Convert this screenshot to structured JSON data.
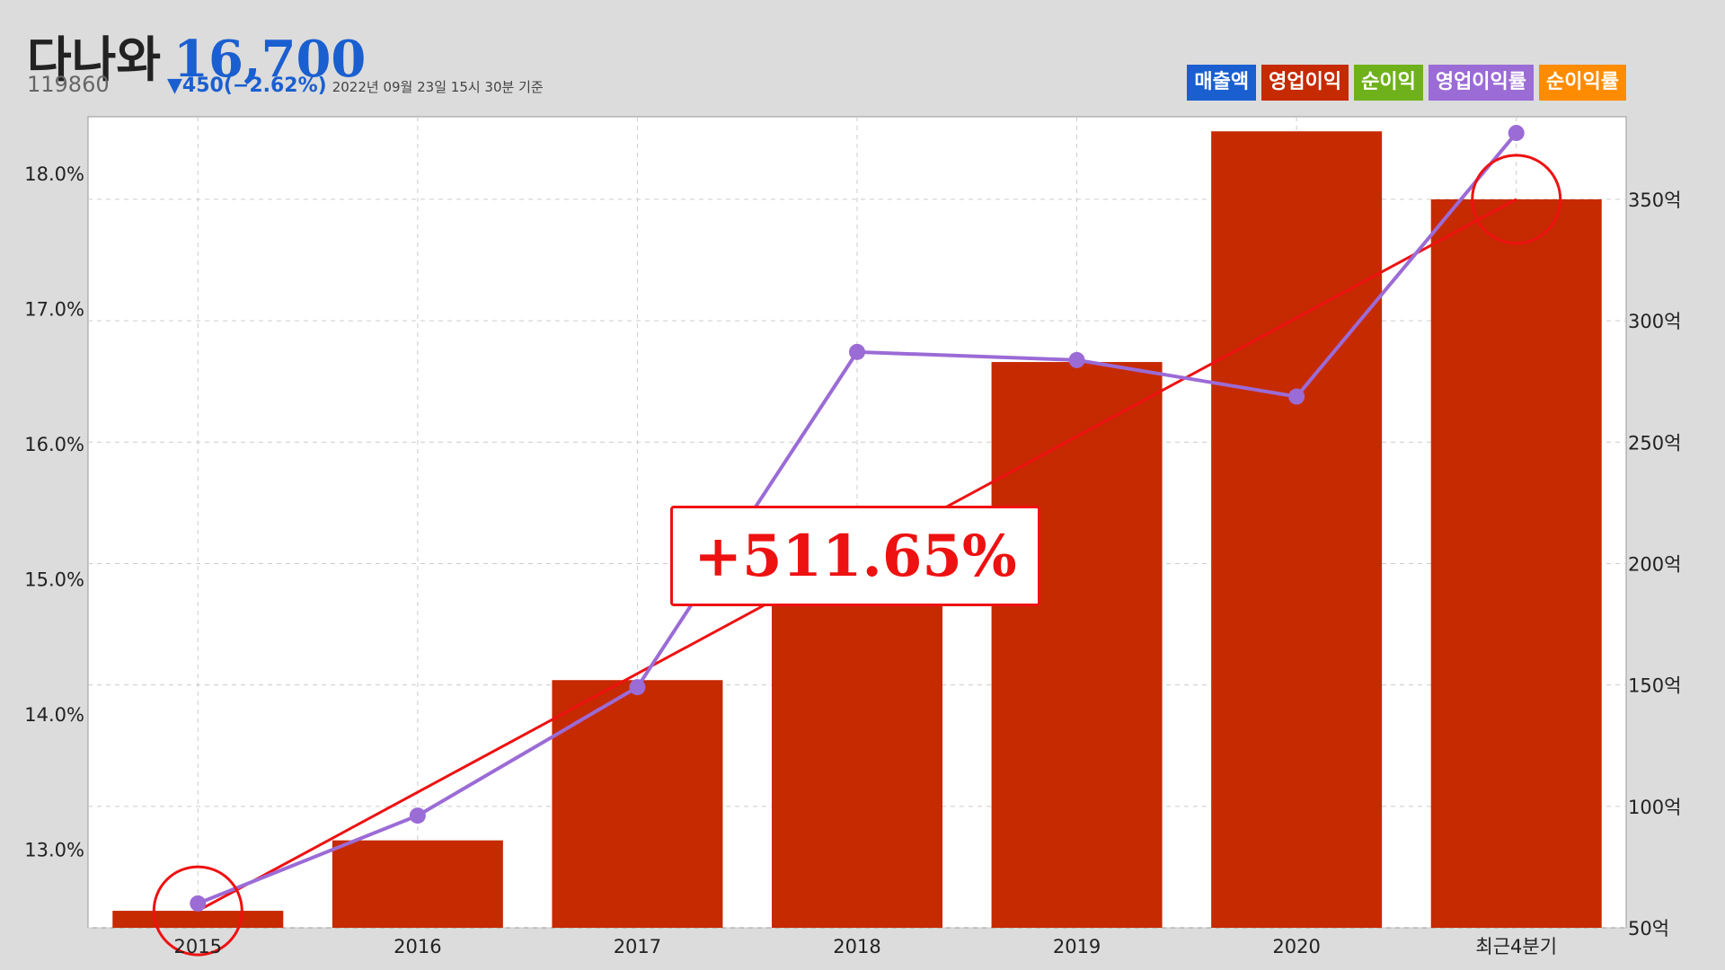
{
  "stock": {
    "name": "다나와",
    "price": "16,700",
    "code": "119860",
    "change": "▼450(−2.62%)",
    "as_of": "2022년 09월 23일 15시 30분 기준"
  },
  "legend": [
    {
      "label": "매출액",
      "color": "#1a5fd0"
    },
    {
      "label": "영업이익",
      "color": "#c62a00"
    },
    {
      "label": "순이익",
      "color": "#6fb11a"
    },
    {
      "label": "영업이익률",
      "color": "#9b6bd6"
    },
    {
      "label": "순이익률",
      "color": "#ff8c00"
    }
  ],
  "annotation": "+511.65%",
  "chart_data": {
    "type": "bar",
    "categories": [
      "2015",
      "2016",
      "2017",
      "2018",
      "2019",
      "2020",
      "최근4분기"
    ],
    "series": [
      {
        "name": "영업이익",
        "type": "bar",
        "axis": "right",
        "color": "#c62a00",
        "values": [
          57,
          86,
          152,
          186,
          283,
          378,
          350
        ]
      },
      {
        "name": "영업이익률",
        "type": "line",
        "axis": "left",
        "color": "#9b6bd6",
        "values": [
          12.6,
          13.25,
          14.2,
          16.68,
          16.62,
          16.35,
          18.3
        ]
      }
    ],
    "trend_line": {
      "from": [
        "2015",
        57
      ],
      "to": [
        "최근4분기",
        350
      ],
      "color": "#ee1111"
    },
    "highlight_circles": [
      [
        "2015",
        57
      ],
      [
        "최근4분기",
        350
      ]
    ],
    "left_axis": {
      "ticks": [
        "13.0%",
        "14.0%",
        "15.0%",
        "16.0%",
        "17.0%",
        "18.0%"
      ],
      "tick_values": [
        13,
        14,
        15,
        16,
        17,
        18
      ],
      "range": [
        12.42,
        18.42
      ]
    },
    "right_axis": {
      "ticks": [
        "50억",
        "100억",
        "150억",
        "200억",
        "250억",
        "300억",
        "350억"
      ],
      "tick_values": [
        50,
        100,
        150,
        200,
        250,
        300,
        350
      ],
      "range": [
        50,
        384
      ]
    },
    "grid": true
  }
}
